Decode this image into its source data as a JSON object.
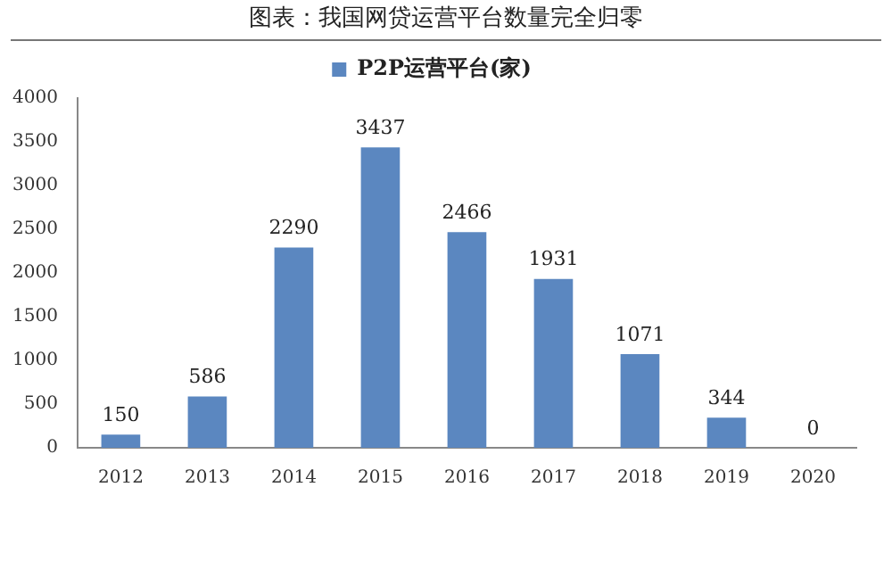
{
  "chart_data": {
    "type": "bar",
    "title": "图表：我国网贷运营平台数量完全归零",
    "categories": [
      "2012",
      "2013",
      "2014",
      "2015",
      "2016",
      "2017",
      "2018",
      "2019",
      "2020"
    ],
    "series": [
      {
        "name": "P2P运营平台(家)",
        "color": "#5b87c0",
        "values": [
          150,
          586,
          2290,
          3437,
          2466,
          1931,
          1071,
          344,
          0
        ]
      }
    ],
    "ylim": [
      0,
      4000
    ],
    "yticks": [
      0,
      500,
      1000,
      1500,
      2000,
      2500,
      3000,
      3500,
      4000
    ],
    "data_labels": true,
    "legend": "top",
    "grid": false
  }
}
